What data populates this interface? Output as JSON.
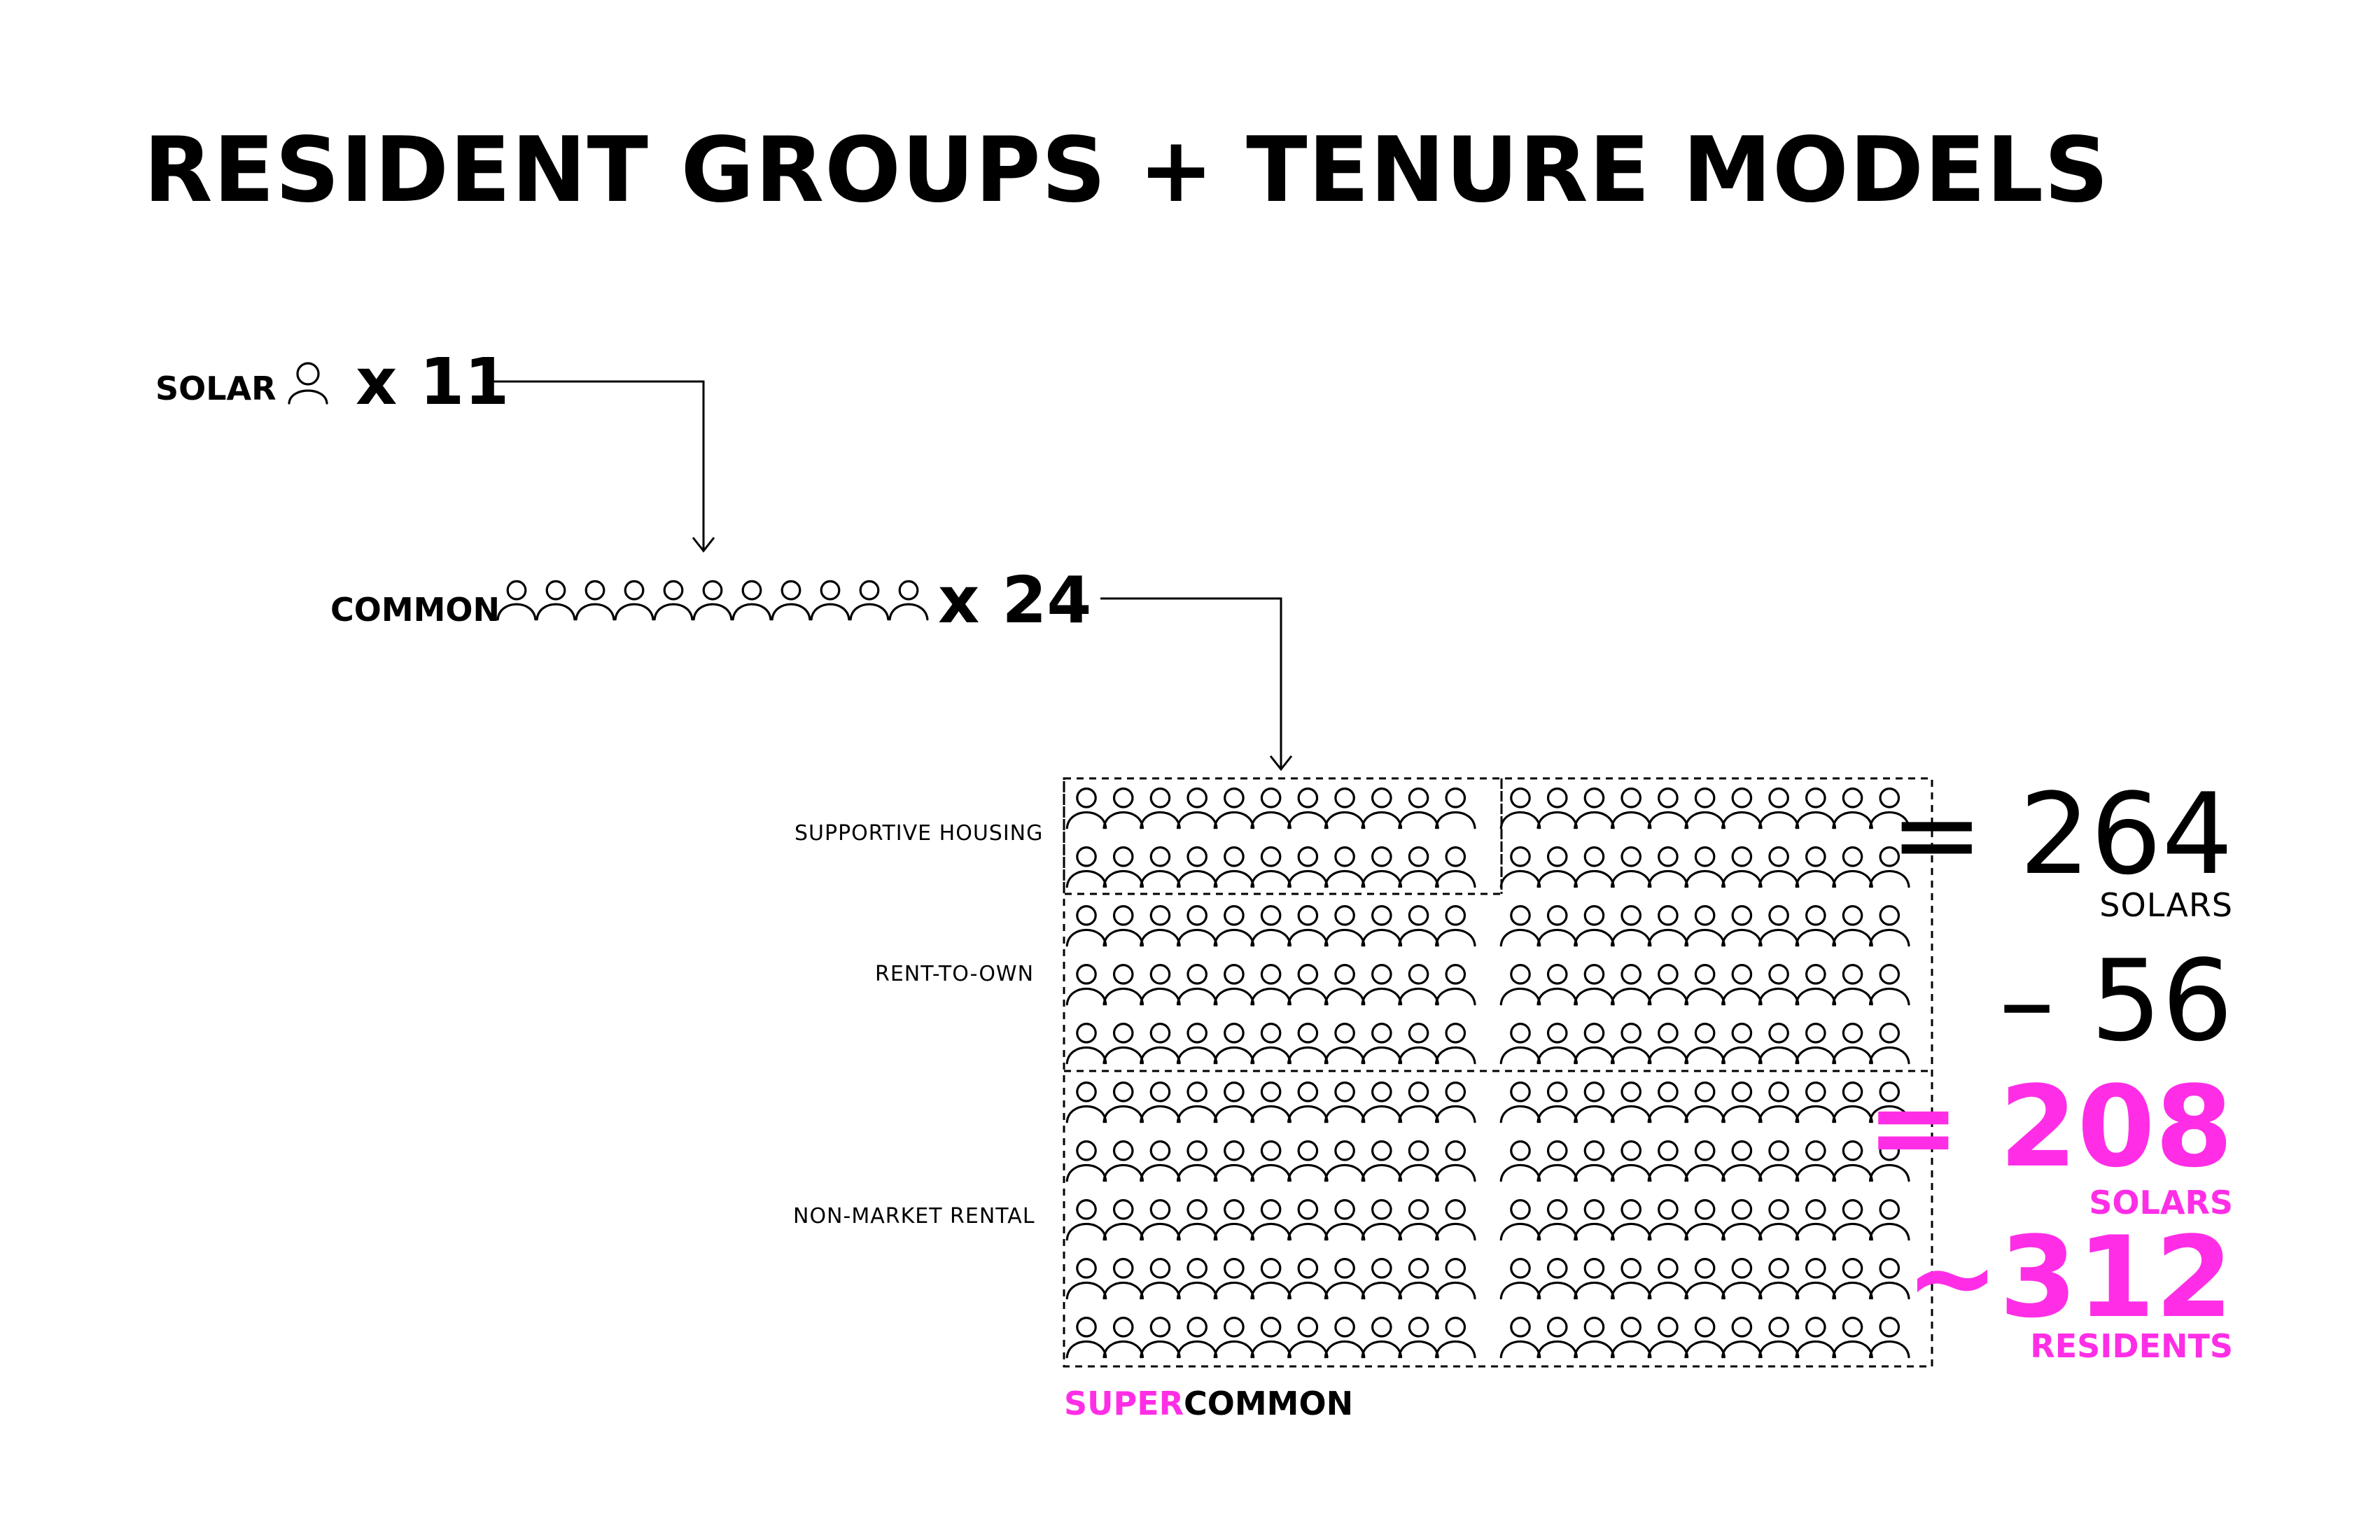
{
  "title": "RESIDENT GROUPS + TENURE MODELS",
  "solar": {
    "label": "SOLAR",
    "icon": "person-icon",
    "count_text": "x 11",
    "icons_shown": 1
  },
  "common": {
    "label": "COMMON",
    "icon": "person-icon",
    "count_text": "x 24",
    "icons_shown": 11
  },
  "groups": [
    {
      "label": "SUPPORTIVE HOUSING"
    },
    {
      "label": "RENT-TO-OWN"
    },
    {
      "label": "NON-MARKET RENTAL"
    }
  ],
  "grid": {
    "columns": 2,
    "rows": 10,
    "icons_per_row_per_column": 11,
    "border": "dashed"
  },
  "supercommon": {
    "prefix": "SUPER",
    "suffix": "COMMON"
  },
  "totals": {
    "solars_total": "= 264",
    "solars_total_label": "SOLARS",
    "minus": "– 56",
    "solars_net": "= 208",
    "solars_net_label": "SOLARS",
    "residents": "~312",
    "residents_label": "RESIDENTS"
  },
  "colors": {
    "accent": "#ff2ee6",
    "text": "#000000",
    "background": "#ffffff"
  }
}
